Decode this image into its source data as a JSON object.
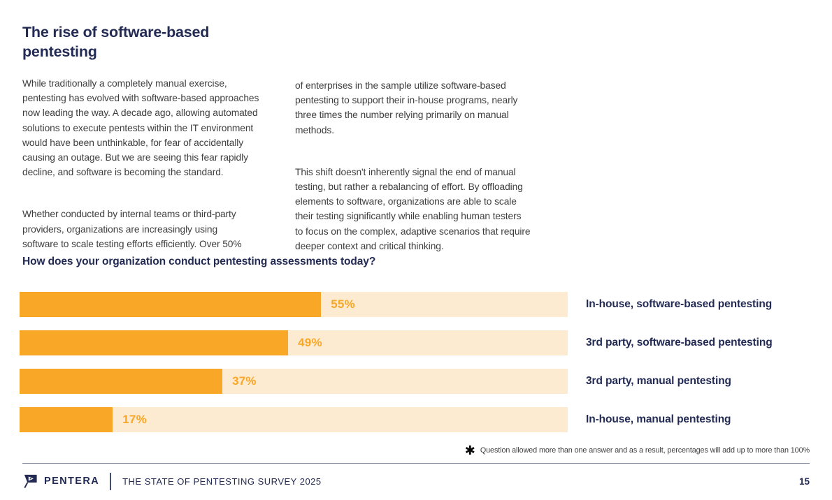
{
  "theme": {
    "navy": "#232B55",
    "orange": "#F8A726",
    "bar_track": "#FCEAD1",
    "body_text": "#3E3E3E"
  },
  "header": {
    "title": "The rise of software-based\npentesting"
  },
  "intro": {
    "left": [
      "While traditionally a completely manual exercise,\npentesting has evolved with software-based approaches\nnow leading the way. A decade ago, allowing automated\nsolutions to execute pentests within the IT environment\nwould have been unthinkable, for fear of accidentally\ncausing an outage. But we are seeing this fear rapidly\ndecline, and software is becoming the standard.",
      "Whether conducted by internal teams or third-party\nproviders, organizations are increasingly using\nsoftware to scale testing efforts efficiently. Over 50%"
    ],
    "right": [
      "of enterprises in the sample utilize software-based\npentesting to support their in-house programs, nearly\nthree times the number relying primarily on manual\nmethods.",
      "This shift doesn't inherently signal the end of manual\ntesting, but rather a rebalancing of effort. By offloading\nelements to software, organizations are able to scale\ntheir testing significantly while enabling human testers\nto focus on the complex, adaptive scenarios that require\ndeeper context and critical thinking."
    ]
  },
  "chart_data": {
    "type": "bar",
    "orientation": "horizontal",
    "title": "How does your organization conduct pentesting assessments today?",
    "categories": [
      "In-house, software-based pentesting",
      "3rd party, software-based pentesting",
      "3rd party, manual pentesting",
      "In-house, manual pentesting"
    ],
    "values": [
      55,
      49,
      37,
      17
    ],
    "value_labels": [
      "55%",
      "49%",
      "37%",
      "17%"
    ],
    "xlim": [
      0,
      100
    ],
    "grid": false,
    "legend": "none",
    "bar_color": "#F8A726",
    "track_color": "#FCEAD1",
    "label_color": "#232B55"
  },
  "footnote": {
    "marker": "✱",
    "text": "Question allowed more than one answer and as a result, percentages will add up to more than 100%"
  },
  "footer": {
    "brand": "PENTERA",
    "doc_title": "THE STATE OF PENTESTING SURVEY 2025",
    "page_number": "15"
  }
}
